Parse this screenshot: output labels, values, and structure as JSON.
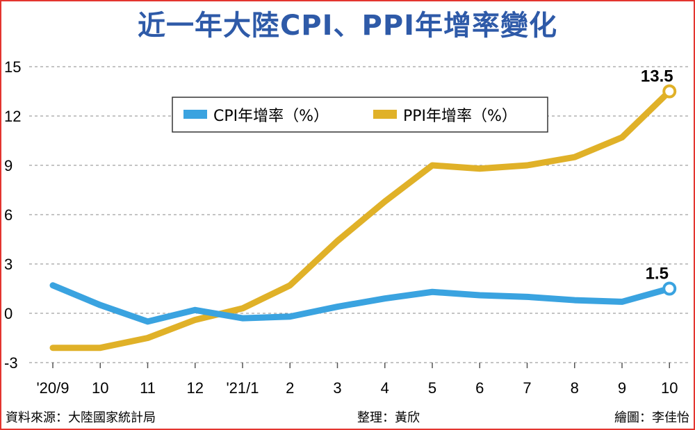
{
  "title": "近一年大陸CPI、PPI年增率變化",
  "footer": {
    "source": "資料來源：大陸國家統計局",
    "editor": "整理：黃欣",
    "artist": "繪圖：李佳怡"
  },
  "chart_data": {
    "type": "line",
    "title": "近一年大陸CPI、PPI年增率變化",
    "xlabel": "",
    "ylabel": "",
    "categories": [
      "'20/9",
      "10",
      "11",
      "12",
      "'21/1",
      "2",
      "3",
      "4",
      "5",
      "6",
      "7",
      "8",
      "9",
      "10"
    ],
    "yticks": [
      "15",
      "12",
      "9",
      "6",
      "3",
      "0",
      "-3"
    ],
    "ylim": [
      -3,
      15
    ],
    "grid": "horizontal dashed",
    "legend_position": "top-center",
    "series": [
      {
        "name": "CPI年增率（%）",
        "color": "#3aa3e0",
        "values": [
          1.7,
          0.5,
          -0.5,
          0.2,
          -0.3,
          -0.2,
          0.4,
          0.9,
          1.3,
          1.1,
          1.0,
          0.8,
          0.7,
          1.5
        ],
        "end_label": "1.5"
      },
      {
        "name": "PPI年增率（%）",
        "color": "#e0b128",
        "values": [
          -2.1,
          -2.1,
          -1.5,
          -0.4,
          0.3,
          1.7,
          4.4,
          6.8,
          9.0,
          8.8,
          9.0,
          9.5,
          10.7,
          13.5
        ],
        "end_label": "13.5"
      }
    ]
  }
}
